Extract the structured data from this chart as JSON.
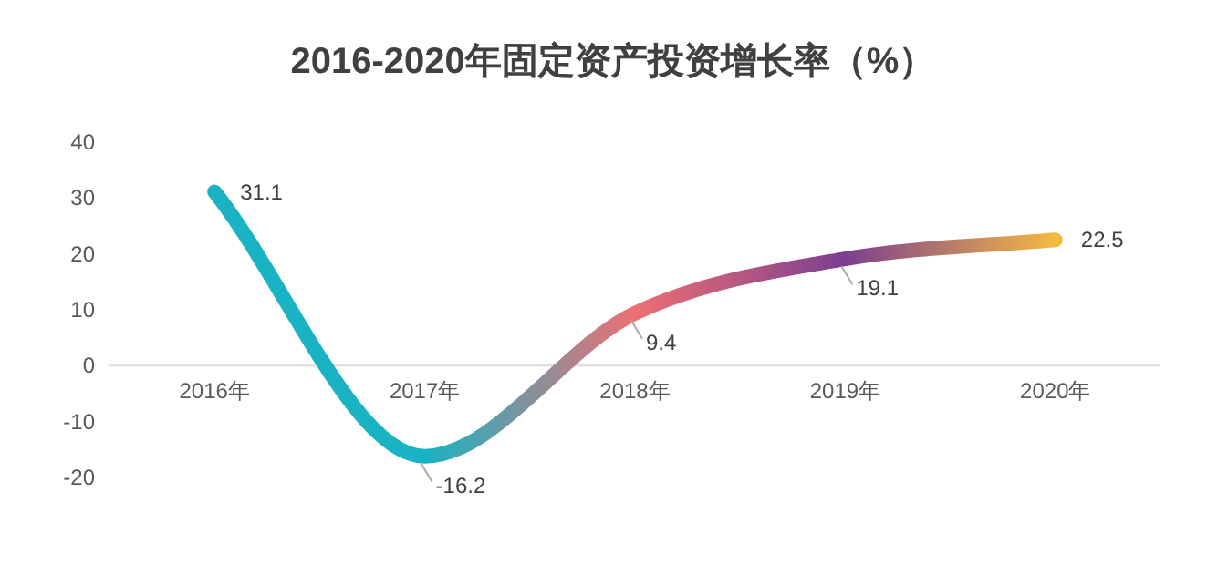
{
  "chart_data": {
    "type": "line",
    "title": "2016-2020年固定资产投资增长率（%）",
    "categories": [
      "2016年",
      "2017年",
      "2018年",
      "2019年",
      "2020年"
    ],
    "series": [
      {
        "values": [
          31.1,
          -16.2,
          9.4,
          19.1,
          22.5
        ],
        "colors": [
          "#19b3c4",
          "#19b3c4",
          "#ee6f73",
          "#7b3f90",
          "#f5b942"
        ]
      }
    ],
    "ylim": [
      -20,
      40
    ],
    "yticks": [
      -20,
      -10,
      0,
      10,
      20,
      30,
      40
    ],
    "data_labels": true,
    "grid": false,
    "marker": "none",
    "line_style": "solid"
  }
}
